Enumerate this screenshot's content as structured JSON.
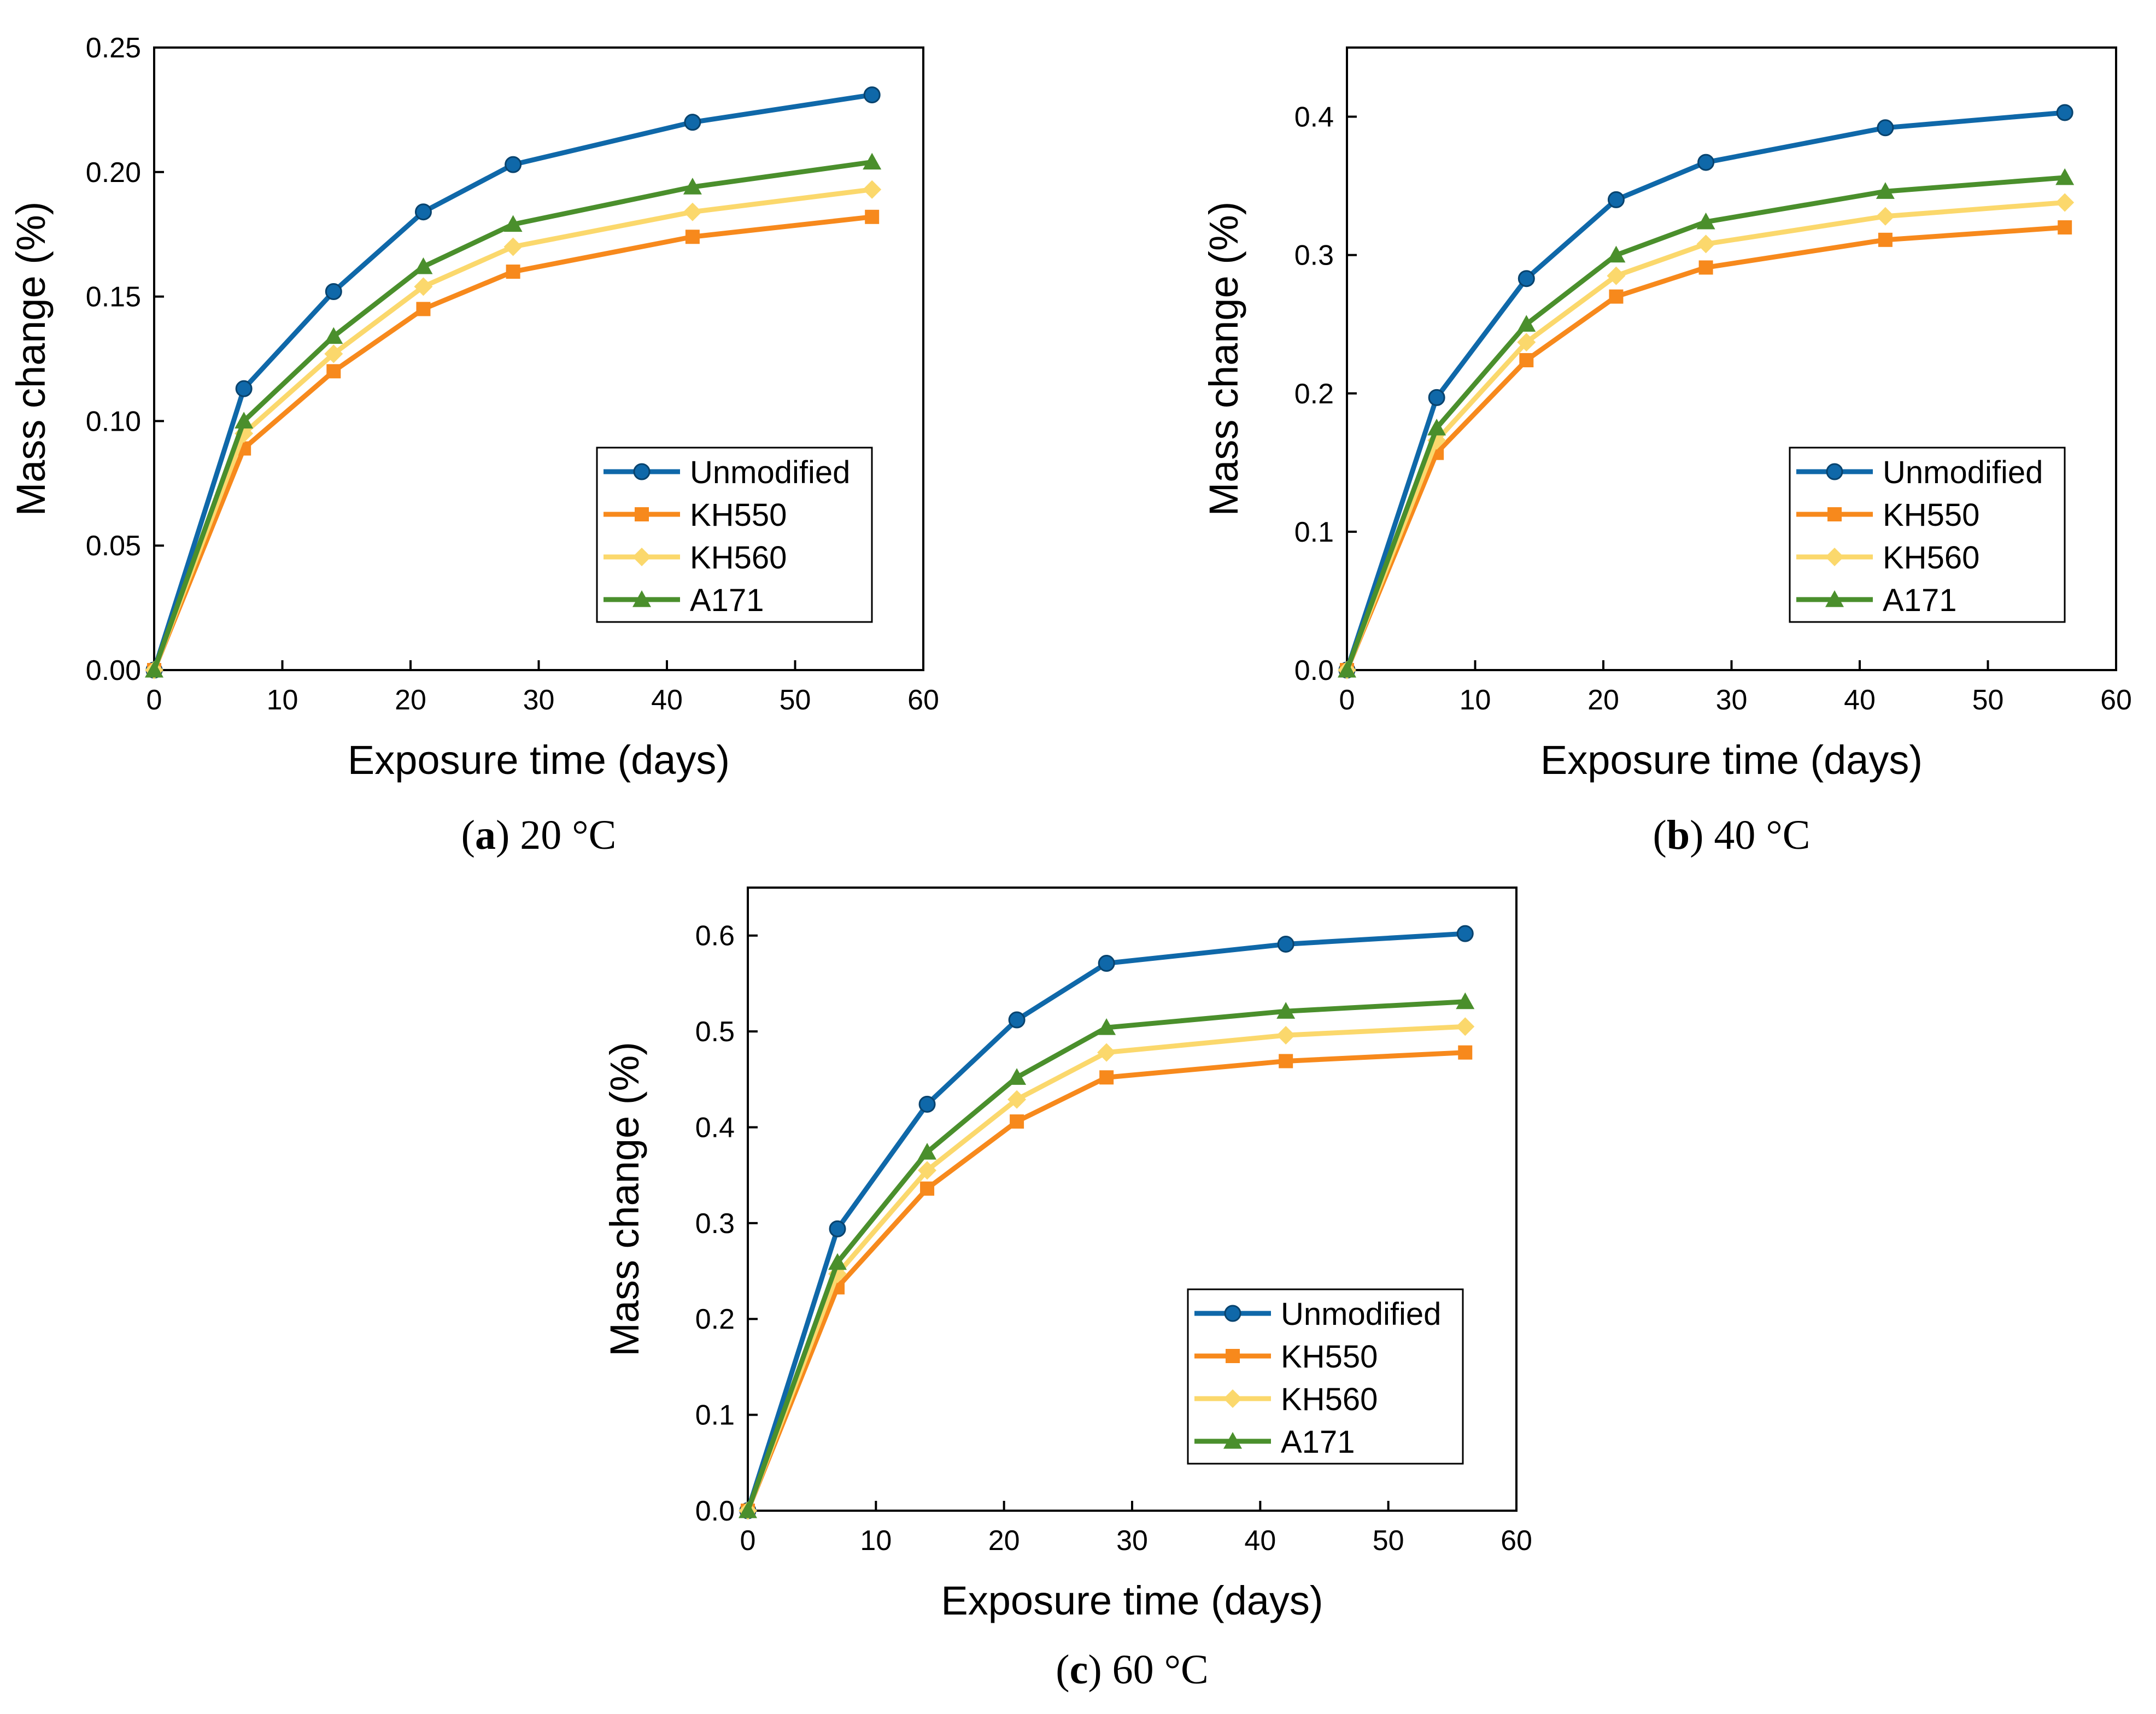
{
  "colors": {
    "Unmodified": "#0f68a9",
    "KH550": "#f7891c",
    "KH560": "#fbd86c",
    "A171": "#4a8f2c"
  },
  "chart_data": [
    {
      "type": "line",
      "caption_letter": "a",
      "caption_text": "20 °C",
      "xlabel": "Exposure time (days)",
      "ylabel": "Mass change (%)",
      "xlim": [
        0,
        60
      ],
      "ylim": [
        0,
        0.25
      ],
      "x_ticks": [
        "0",
        "10",
        "20",
        "30",
        "40",
        "50",
        "60"
      ],
      "y_ticks": [
        "0.00",
        "0.05",
        "0.10",
        "0.15",
        "0.20",
        "0.25"
      ],
      "x": [
        0,
        7,
        14,
        21,
        28,
        42,
        56
      ],
      "legend_position": "bottom-right",
      "series": [
        {
          "name": "Unmodified",
          "marker": "circle",
          "values": [
            0,
            0.113,
            0.152,
            0.184,
            0.203,
            0.22,
            0.231
          ]
        },
        {
          "name": "KH550",
          "marker": "square",
          "values": [
            0,
            0.089,
            0.12,
            0.145,
            0.16,
            0.174,
            0.182
          ]
        },
        {
          "name": "KH560",
          "marker": "diamond",
          "values": [
            0,
            0.095,
            0.127,
            0.154,
            0.17,
            0.184,
            0.193
          ]
        },
        {
          "name": "A171",
          "marker": "triangle",
          "values": [
            0,
            0.1,
            0.134,
            0.162,
            0.179,
            0.194,
            0.204
          ]
        }
      ]
    },
    {
      "type": "line",
      "caption_letter": "b",
      "caption_text": "40 °C",
      "xlabel": "Exposure time (days)",
      "ylabel": "Mass change (%)",
      "xlim": [
        0,
        60
      ],
      "ylim": [
        0,
        0.45
      ],
      "x_ticks": [
        "0",
        "10",
        "20",
        "30",
        "40",
        "50",
        "60"
      ],
      "y_ticks": [
        "0.0",
        "0.1",
        "0.2",
        "0.3",
        "0.4"
      ],
      "x": [
        0,
        7,
        14,
        21,
        28,
        42,
        56
      ],
      "legend_position": "bottom-right",
      "series": [
        {
          "name": "Unmodified",
          "marker": "circle",
          "values": [
            0,
            0.197,
            0.283,
            0.34,
            0.367,
            0.392,
            0.403
          ]
        },
        {
          "name": "KH550",
          "marker": "square",
          "values": [
            0,
            0.157,
            0.224,
            0.27,
            0.291,
            0.311,
            0.32
          ]
        },
        {
          "name": "KH560",
          "marker": "diamond",
          "values": [
            0,
            0.166,
            0.237,
            0.285,
            0.308,
            0.328,
            0.338
          ]
        },
        {
          "name": "A171",
          "marker": "triangle",
          "values": [
            0,
            0.175,
            0.25,
            0.3,
            0.324,
            0.346,
            0.356
          ]
        }
      ]
    },
    {
      "type": "line",
      "caption_letter": "c",
      "caption_text": "60 °C",
      "xlabel": "Exposure time (days)",
      "ylabel": "Mass change (%)",
      "xlim": [
        0,
        60
      ],
      "ylim": [
        0,
        0.65
      ],
      "x_ticks": [
        "0",
        "10",
        "20",
        "30",
        "40",
        "50",
        "60"
      ],
      "y_ticks": [
        "0.0",
        "0.1",
        "0.2",
        "0.3",
        "0.4",
        "0.5",
        "0.6"
      ],
      "x": [
        0,
        7,
        14,
        21,
        28,
        42,
        56
      ],
      "legend_position": "bottom-right",
      "series": [
        {
          "name": "Unmodified",
          "marker": "circle",
          "values": [
            0,
            0.294,
            0.424,
            0.512,
            0.571,
            0.591,
            0.602
          ]
        },
        {
          "name": "KH550",
          "marker": "square",
          "values": [
            0,
            0.233,
            0.336,
            0.406,
            0.452,
            0.469,
            0.478
          ]
        },
        {
          "name": "KH560",
          "marker": "diamond",
          "values": [
            0,
            0.247,
            0.355,
            0.429,
            0.478,
            0.496,
            0.505
          ]
        },
        {
          "name": "A171",
          "marker": "triangle",
          "values": [
            0,
            0.259,
            0.374,
            0.452,
            0.504,
            0.521,
            0.531
          ]
        }
      ]
    }
  ]
}
